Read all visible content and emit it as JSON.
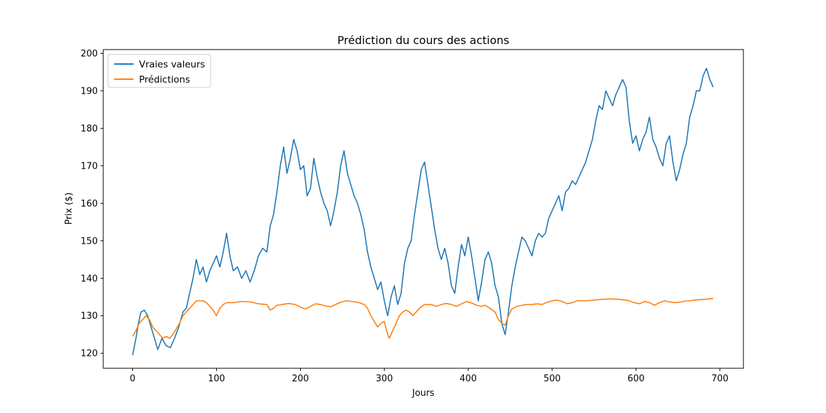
{
  "chart_data": {
    "type": "line",
    "title": "Prédiction du cours des actions",
    "xlabel": "Jours",
    "ylabel": "Prix ($)",
    "xlim": [
      -35,
      728
    ],
    "ylim": [
      116,
      201
    ],
    "xticks": [
      0,
      100,
      200,
      300,
      400,
      500,
      600,
      700
    ],
    "yticks": [
      120,
      130,
      140,
      150,
      160,
      170,
      180,
      190,
      200
    ],
    "grid": false,
    "legend_position": "top-left",
    "series": [
      {
        "name": "Vraies valeurs",
        "color": "#1f77b4",
        "points": [
          [
            0,
            119.5
          ],
          [
            4,
            124
          ],
          [
            7,
            128
          ],
          [
            10,
            131
          ],
          [
            14,
            131.5
          ],
          [
            18,
            130
          ],
          [
            22,
            127
          ],
          [
            26,
            124
          ],
          [
            30,
            121
          ],
          [
            35,
            124
          ],
          [
            40,
            122
          ],
          [
            45,
            121.5
          ],
          [
            50,
            124
          ],
          [
            55,
            127
          ],
          [
            60,
            131
          ],
          [
            64,
            132
          ],
          [
            68,
            136
          ],
          [
            72,
            140
          ],
          [
            76,
            145
          ],
          [
            80,
            141
          ],
          [
            84,
            143
          ],
          [
            88,
            139
          ],
          [
            92,
            142
          ],
          [
            96,
            144
          ],
          [
            100,
            146
          ],
          [
            104,
            143
          ],
          [
            108,
            147
          ],
          [
            112,
            152
          ],
          [
            116,
            146
          ],
          [
            120,
            142
          ],
          [
            125,
            143
          ],
          [
            130,
            140
          ],
          [
            135,
            142
          ],
          [
            140,
            139
          ],
          [
            145,
            142
          ],
          [
            150,
            146
          ],
          [
            155,
            148
          ],
          [
            160,
            147
          ],
          [
            164,
            154
          ],
          [
            168,
            157
          ],
          [
            172,
            163
          ],
          [
            176,
            170
          ],
          [
            180,
            175
          ],
          [
            184,
            168
          ],
          [
            188,
            172
          ],
          [
            192,
            177
          ],
          [
            196,
            174
          ],
          [
            200,
            169
          ],
          [
            204,
            170
          ],
          [
            208,
            162
          ],
          [
            212,
            164
          ],
          [
            216,
            172
          ],
          [
            220,
            167
          ],
          [
            224,
            163
          ],
          [
            228,
            160
          ],
          [
            232,
            158
          ],
          [
            236,
            154
          ],
          [
            240,
            158
          ],
          [
            244,
            163
          ],
          [
            248,
            170
          ],
          [
            252,
            174
          ],
          [
            256,
            168
          ],
          [
            260,
            165
          ],
          [
            264,
            162
          ],
          [
            268,
            160
          ],
          [
            272,
            157
          ],
          [
            276,
            153
          ],
          [
            280,
            147
          ],
          [
            284,
            143
          ],
          [
            288,
            140
          ],
          [
            292,
            137
          ],
          [
            296,
            139
          ],
          [
            300,
            134
          ],
          [
            304,
            130
          ],
          [
            308,
            135
          ],
          [
            312,
            138
          ],
          [
            316,
            133
          ],
          [
            320,
            136
          ],
          [
            324,
            144
          ],
          [
            328,
            148
          ],
          [
            332,
            150
          ],
          [
            336,
            157
          ],
          [
            340,
            163
          ],
          [
            344,
            169
          ],
          [
            348,
            171
          ],
          [
            352,
            165
          ],
          [
            356,
            159
          ],
          [
            360,
            153
          ],
          [
            364,
            148
          ],
          [
            368,
            145
          ],
          [
            372,
            148
          ],
          [
            376,
            144
          ],
          [
            380,
            138
          ],
          [
            384,
            136
          ],
          [
            388,
            143
          ],
          [
            392,
            149
          ],
          [
            396,
            146
          ],
          [
            400,
            151
          ],
          [
            404,
            146
          ],
          [
            408,
            140
          ],
          [
            412,
            134
          ],
          [
            416,
            139
          ],
          [
            420,
            145
          ],
          [
            424,
            147
          ],
          [
            428,
            144
          ],
          [
            432,
            138
          ],
          [
            436,
            135
          ],
          [
            440,
            128
          ],
          [
            444,
            125
          ],
          [
            448,
            131
          ],
          [
            452,
            138
          ],
          [
            456,
            143
          ],
          [
            460,
            147
          ],
          [
            464,
            151
          ],
          [
            468,
            150
          ],
          [
            472,
            148
          ],
          [
            476,
            146
          ],
          [
            480,
            150
          ],
          [
            484,
            152
          ],
          [
            488,
            151
          ],
          [
            492,
            152
          ],
          [
            496,
            156
          ],
          [
            500,
            158
          ],
          [
            504,
            160
          ],
          [
            508,
            162
          ],
          [
            512,
            158
          ],
          [
            516,
            163
          ],
          [
            520,
            164
          ],
          [
            524,
            166
          ],
          [
            528,
            165
          ],
          [
            532,
            167
          ],
          [
            536,
            169
          ],
          [
            540,
            171
          ],
          [
            544,
            174
          ],
          [
            548,
            177
          ],
          [
            552,
            182
          ],
          [
            556,
            186
          ],
          [
            560,
            185
          ],
          [
            564,
            190
          ],
          [
            568,
            188
          ],
          [
            572,
            186
          ],
          [
            576,
            189
          ],
          [
            580,
            191
          ],
          [
            584,
            193
          ],
          [
            588,
            191
          ],
          [
            592,
            182
          ],
          [
            596,
            176
          ],
          [
            600,
            178
          ],
          [
            604,
            174
          ],
          [
            608,
            177
          ],
          [
            612,
            179
          ],
          [
            616,
            183
          ],
          [
            620,
            177
          ],
          [
            624,
            175
          ],
          [
            628,
            172
          ],
          [
            632,
            170
          ],
          [
            636,
            176
          ],
          [
            640,
            178
          ],
          [
            644,
            171
          ],
          [
            648,
            166
          ],
          [
            652,
            169
          ],
          [
            656,
            173
          ],
          [
            660,
            176
          ],
          [
            664,
            183
          ],
          [
            668,
            186
          ],
          [
            672,
            190
          ],
          [
            676,
            190
          ],
          [
            680,
            194
          ],
          [
            684,
            196
          ],
          [
            688,
            193
          ],
          [
            692,
            191
          ]
        ]
      },
      {
        "name": "Prédictions",
        "color": "#ff7f0e",
        "points": [
          [
            0,
            124.5
          ],
          [
            4,
            126
          ],
          [
            8,
            128
          ],
          [
            12,
            129
          ],
          [
            16,
            130
          ],
          [
            20,
            129
          ],
          [
            24,
            127
          ],
          [
            28,
            126
          ],
          [
            32,
            125
          ],
          [
            36,
            124
          ],
          [
            40,
            124.5
          ],
          [
            44,
            124
          ],
          [
            48,
            125
          ],
          [
            52,
            126.5
          ],
          [
            56,
            128
          ],
          [
            60,
            130
          ],
          [
            64,
            131
          ],
          [
            68,
            132
          ],
          [
            72,
            133
          ],
          [
            76,
            134
          ],
          [
            80,
            134
          ],
          [
            84,
            134
          ],
          [
            88,
            133.5
          ],
          [
            92,
            132.5
          ],
          [
            96,
            131.5
          ],
          [
            100,
            130
          ],
          [
            104,
            132
          ],
          [
            108,
            133
          ],
          [
            112,
            133.5
          ],
          [
            120,
            133.5
          ],
          [
            130,
            133.8
          ],
          [
            140,
            133.7
          ],
          [
            150,
            133.2
          ],
          [
            160,
            133
          ],
          [
            164,
            131.5
          ],
          [
            168,
            132
          ],
          [
            172,
            132.8
          ],
          [
            178,
            133
          ],
          [
            186,
            133.3
          ],
          [
            194,
            133
          ],
          [
            200,
            132.3
          ],
          [
            206,
            131.8
          ],
          [
            212,
            132.5
          ],
          [
            218,
            133.2
          ],
          [
            224,
            133
          ],
          [
            230,
            132.6
          ],
          [
            236,
            132.4
          ],
          [
            242,
            133
          ],
          [
            248,
            133.6
          ],
          [
            254,
            134
          ],
          [
            262,
            133.8
          ],
          [
            270,
            133.5
          ],
          [
            276,
            133
          ],
          [
            280,
            132
          ],
          [
            284,
            130
          ],
          [
            288,
            128.5
          ],
          [
            292,
            127
          ],
          [
            296,
            128
          ],
          [
            300,
            128.5
          ],
          [
            304,
            125
          ],
          [
            306,
            124
          ],
          [
            310,
            126
          ],
          [
            314,
            128
          ],
          [
            318,
            130
          ],
          [
            322,
            131
          ],
          [
            326,
            131.5
          ],
          [
            330,
            131
          ],
          [
            334,
            130
          ],
          [
            338,
            131
          ],
          [
            342,
            132
          ],
          [
            348,
            133
          ],
          [
            356,
            133
          ],
          [
            362,
            132.5
          ],
          [
            368,
            133
          ],
          [
            374,
            133.3
          ],
          [
            380,
            133
          ],
          [
            386,
            132.5
          ],
          [
            392,
            133.2
          ],
          [
            398,
            133.8
          ],
          [
            404,
            133.4
          ],
          [
            410,
            132.8
          ],
          [
            416,
            132.5
          ],
          [
            420,
            132.8
          ],
          [
            426,
            132
          ],
          [
            432,
            131
          ],
          [
            436,
            129
          ],
          [
            440,
            128
          ],
          [
            444,
            127.5
          ],
          [
            448,
            130
          ],
          [
            452,
            131.8
          ],
          [
            458,
            132.5
          ],
          [
            464,
            132.8
          ],
          [
            470,
            133
          ],
          [
            476,
            133
          ],
          [
            482,
            133.2
          ],
          [
            488,
            133
          ],
          [
            494,
            133.6
          ],
          [
            500,
            134
          ],
          [
            506,
            134.2
          ],
          [
            512,
            133.8
          ],
          [
            518,
            133.2
          ],
          [
            524,
            133.5
          ],
          [
            530,
            134
          ],
          [
            540,
            134
          ],
          [
            550,
            134.2
          ],
          [
            560,
            134.4
          ],
          [
            570,
            134.5
          ],
          [
            580,
            134.4
          ],
          [
            590,
            134.1
          ],
          [
            598,
            133.5
          ],
          [
            604,
            133.2
          ],
          [
            610,
            133.8
          ],
          [
            616,
            133.5
          ],
          [
            622,
            132.8
          ],
          [
            628,
            133.5
          ],
          [
            634,
            134
          ],
          [
            640,
            133.7
          ],
          [
            646,
            133.5
          ],
          [
            652,
            133.6
          ],
          [
            658,
            133.9
          ],
          [
            664,
            134
          ],
          [
            670,
            134.2
          ],
          [
            676,
            134.3
          ],
          [
            682,
            134.4
          ],
          [
            688,
            134.5
          ],
          [
            692,
            134.6
          ]
        ]
      }
    ]
  }
}
